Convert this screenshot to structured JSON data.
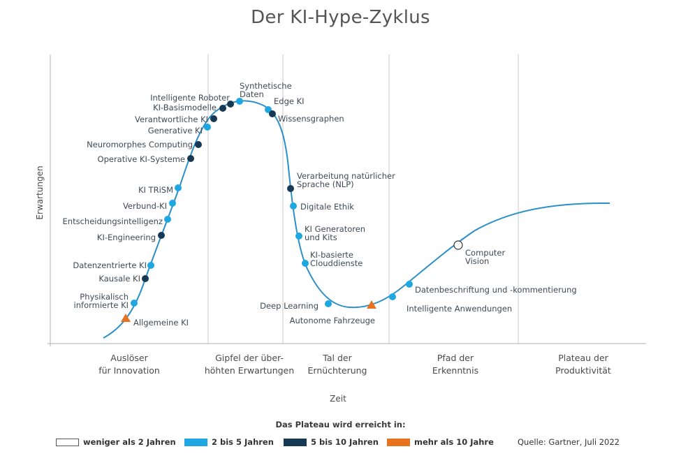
{
  "title": "Der KI-Hype-Zyklus",
  "axis": {
    "y_label": "Erwartungen",
    "x_label": "Zeit"
  },
  "phases": [
    {
      "line1": "Auslöser",
      "line2": "für Innovation"
    },
    {
      "line1": "Gipfel der über-",
      "line2": "höhten Erwartungen"
    },
    {
      "line1": "Tal der",
      "line2": "Ernüchterung"
    },
    {
      "line1": "Pfad der",
      "line2": "Erkenntnis"
    },
    {
      "line1": "Plateau der",
      "line2": "Produktivität"
    }
  ],
  "colors": {
    "curve": "#2b8fc8",
    "lt2": "#ffffff",
    "y2to5": "#1ea7e1",
    "y5to10": "#163a55",
    "gt10": "#e8731f",
    "grid": "#c8c8c8"
  },
  "technologies": [
    {
      "name": "Allgemeine KI",
      "cat": "gt10",
      "shape": "triangle"
    },
    {
      "name": "Physikalisch informierte KI",
      "lines": [
        "Physikalisch",
        "informierte KI"
      ],
      "cat": "y2to5"
    },
    {
      "name": "Kausale KI",
      "cat": "y5to10"
    },
    {
      "name": "Datenzentrierte KI",
      "cat": "y2to5"
    },
    {
      "name": "KI-Engineering",
      "cat": "y5to10"
    },
    {
      "name": "Entscheidungsintelligenz",
      "cat": "y2to5"
    },
    {
      "name": "Verbund-KI",
      "cat": "y2to5"
    },
    {
      "name": "KI TRiSM",
      "cat": "y2to5"
    },
    {
      "name": "Operative KI-Systeme",
      "cat": "y5to10"
    },
    {
      "name": "Neuromorphes Computing",
      "cat": "y5to10"
    },
    {
      "name": "Generative KI",
      "cat": "y2to5"
    },
    {
      "name": "Verantwortliche KI",
      "cat": "y5to10"
    },
    {
      "name": "KI-Basismodelle",
      "cat": "y5to10"
    },
    {
      "name": "Intelligente Roboter",
      "cat": "y5to10"
    },
    {
      "name": "Synthetische Daten",
      "lines": [
        "Synthetische",
        "Daten"
      ],
      "cat": "y2to5"
    },
    {
      "name": "Edge KI",
      "cat": "y2to5"
    },
    {
      "name": "Wissensgraphen",
      "cat": "y5to10"
    },
    {
      "name": "Verarbeitung natürlicher Sprache (NLP)",
      "lines": [
        "Verarbeitung natürlicher",
        "Sprache (NLP)"
      ],
      "cat": "y5to10"
    },
    {
      "name": "Digitale Ethik",
      "cat": "y2to5"
    },
    {
      "name": "KI Generatoren und Kits",
      "lines": [
        "KI Generatoren",
        "und Kits"
      ],
      "cat": "y2to5"
    },
    {
      "name": "KI-basierte Clouddienste",
      "lines": [
        "KI-basierte",
        "Clouddienste"
      ],
      "cat": "y2to5"
    },
    {
      "name": "Deep Learning",
      "cat": "y2to5"
    },
    {
      "name": "Autonome Fahrzeuge",
      "cat": "gt10",
      "shape": "triangle"
    },
    {
      "name": "Intelligente Anwendungen",
      "cat": "y2to5"
    },
    {
      "name": "Datenbeschriftung und -kommentierung",
      "cat": "y2to5"
    },
    {
      "name": "Computer Vision",
      "lines": [
        "Computer",
        "Vision"
      ],
      "cat": "lt2"
    }
  ],
  "legend": {
    "title": "Das Plateau wird erreicht in:",
    "items": [
      {
        "label": "weniger als 2 Jahren",
        "cat": "lt2"
      },
      {
        "label": "2 bis 5 Jahren",
        "cat": "y2to5"
      },
      {
        "label": "5 bis 10 Jahren",
        "cat": "y5to10"
      },
      {
        "label": "mehr als 10 Jahre",
        "cat": "gt10"
      }
    ]
  },
  "source": "Quelle: Gartner, Juli 2022"
}
